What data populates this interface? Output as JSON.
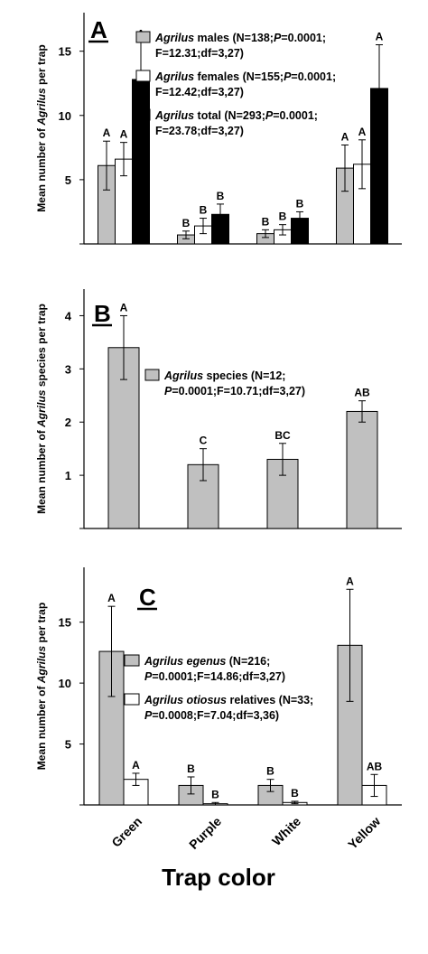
{
  "chart_data": [
    {
      "panel": "A",
      "type": "bar",
      "ylabel_pre": "Mean number of ",
      "ylabel_em": "Agrilus",
      "ylabel_post": " per trap",
      "ylim": [
        0,
        18
      ],
      "yticks": [
        5,
        10,
        15
      ],
      "categories": [
        "Green",
        "Purple",
        "White",
        "Yellow"
      ],
      "series": [
        {
          "name": "Agrilus males",
          "legend_em": "Agrilus",
          "legend_rest": " males (N=138;",
          "legend_p_pre": "",
          "legend_p_rest": "=0.0001;",
          "legend_line2": "F=12.31;df=3,27)",
          "fill": "#c0c0c0",
          "values": [
            6.1,
            0.7,
            0.8,
            5.9
          ],
          "errors": [
            1.9,
            0.3,
            0.3,
            1.8
          ],
          "letters": [
            "A",
            "B",
            "B",
            "A"
          ]
        },
        {
          "name": "Agrilus females",
          "legend_em": "Agrilus",
          "legend_rest": " females (N=155;",
          "legend_p_pre": "",
          "legend_p_rest": "=0.0001;",
          "legend_line2": "F=12.42;df=3,27)",
          "fill": "#ffffff",
          "values": [
            6.6,
            1.4,
            1.1,
            6.2
          ],
          "errors": [
            1.3,
            0.6,
            0.4,
            1.9
          ],
          "letters": [
            "A",
            "B",
            "B",
            "A"
          ]
        },
        {
          "name": "Agrilus total",
          "legend_em": "Agrilus",
          "legend_rest": " total (N=293;",
          "legend_p_pre": "",
          "legend_p_rest": "=0.0001;",
          "legend_line2": "F=23.78;df=3,27)",
          "fill": "#000000",
          "values": [
            12.8,
            2.3,
            2.0,
            12.1
          ],
          "errors": [
            2.9,
            0.8,
            0.5,
            3.4
          ],
          "letters": [
            "A",
            "B",
            "B",
            "A"
          ]
        }
      ]
    },
    {
      "panel": "B",
      "type": "bar",
      "ylabel_pre": "Mean number of ",
      "ylabel_em": "Agrilus",
      "ylabel_post": " species per trap",
      "ylim": [
        0,
        4.5
      ],
      "yticks": [
        1,
        2,
        3,
        4
      ],
      "categories": [
        "Green",
        "Purple",
        "White",
        "Yellow"
      ],
      "series": [
        {
          "name": "Agrilus species",
          "legend_em": "Agrilus",
          "legend_rest": " species (N=12;",
          "legend_p_pre": "",
          "legend_p_rest": "=0.0001;F=10.71;df=3,27)",
          "legend_line2": "",
          "fill": "#c0c0c0",
          "values": [
            3.4,
            1.2,
            1.3,
            2.2
          ],
          "errors": [
            0.6,
            0.3,
            0.3,
            0.2
          ],
          "letters": [
            "A",
            "C",
            "BC",
            "AB"
          ]
        }
      ]
    },
    {
      "panel": "C",
      "type": "bar",
      "ylabel_pre": "Mean number of ",
      "ylabel_em": "Agrilus",
      "ylabel_post": " per trap",
      "ylim": [
        0,
        19.5
      ],
      "yticks": [
        5,
        10,
        15
      ],
      "categories": [
        "Green",
        "Purple",
        "White",
        "Yellow"
      ],
      "series": [
        {
          "name": "Agrilus egenus",
          "legend_em": "Agrilus egenus",
          "legend_rest": " (N=216;",
          "legend_p_pre": "",
          "legend_p_rest": "=0.0001;F=14.86;df=3,27)",
          "legend_line2": "",
          "fill": "#c0c0c0",
          "values": [
            12.6,
            1.6,
            1.6,
            13.1
          ],
          "errors": [
            3.7,
            0.7,
            0.5,
            4.6
          ],
          "letters": [
            "A",
            "B",
            "B",
            "A"
          ]
        },
        {
          "name": "Agrilus otiosus relatives",
          "legend_em": "Agrilus otiosus",
          "legend_rest": " relatives (N=33;",
          "legend_p_pre": "",
          "legend_p_rest": "=0.0008;F=7.04;df=3,36)",
          "legend_line2": "",
          "fill": "#ffffff",
          "values": [
            2.1,
            0.1,
            0.2,
            1.6
          ],
          "errors": [
            0.5,
            0.1,
            0.1,
            0.9
          ],
          "letters": [
            "A",
            "B",
            "B",
            "AB"
          ]
        }
      ]
    }
  ],
  "x_title": "Trap color",
  "p_symbol": "P"
}
